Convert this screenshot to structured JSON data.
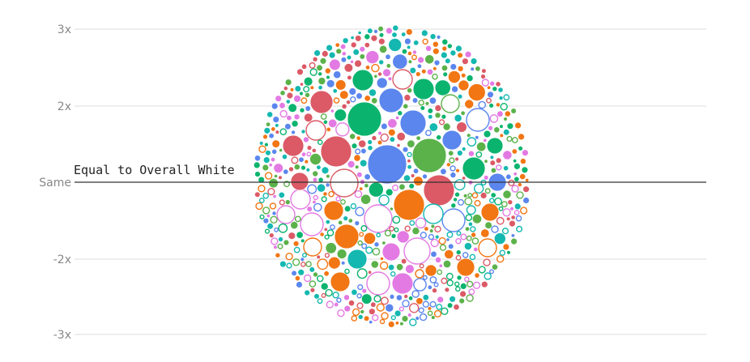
{
  "chart_data": {
    "type": "scatter",
    "title": "",
    "xlabel": "",
    "ylabel": "",
    "y_axis": {
      "scale": "symmetric-ratio",
      "ticks": [
        {
          "value": 3,
          "label": "3x"
        },
        {
          "value": 2,
          "label": "2x"
        },
        {
          "value": 1,
          "label": "Same"
        },
        {
          "value": -2,
          "label": "-2x"
        },
        {
          "value": -3,
          "label": "-3x"
        }
      ]
    },
    "reference_line": {
      "value": 1,
      "label": "Equal to Overall White"
    },
    "grid": true,
    "legend": "none",
    "layout": "packed bubble cluster",
    "series_colors": [
      "#5b86ee",
      "#0bb46e",
      "#db5a66",
      "#5bb24a",
      "#14b8b0",
      "#f27613",
      "#e37ae3"
    ],
    "bubbles": {
      "approx_count": 700,
      "above_reference": "mostly filled bubbles",
      "below_reference": "mostly hollow bubbles"
    }
  }
}
